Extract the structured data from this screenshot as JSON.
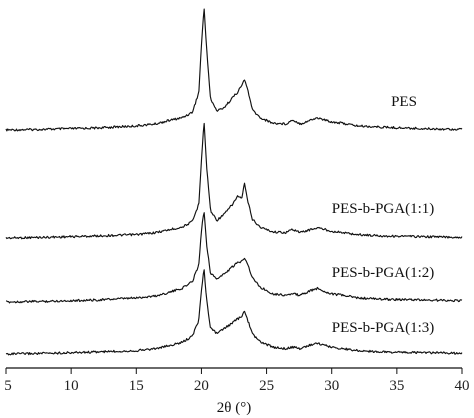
{
  "chart_data": {
    "type": "line",
    "xlabel": "2θ (°)",
    "ylabel": "",
    "xlim": [
      5,
      40
    ],
    "xticks": [
      5,
      10,
      15,
      20,
      25,
      30,
      35,
      40
    ],
    "yaxis_visible": false,
    "grid": false,
    "series": [
      {
        "name": "PES",
        "x": [
          5,
          8,
          12,
          15,
          16.5,
          17.5,
          18.5,
          19.3,
          19.8,
          20.0,
          20.2,
          20.4,
          20.7,
          21.2,
          21.8,
          22.4,
          22.8,
          23.1,
          23.3,
          23.55,
          23.9,
          24.5,
          25.5,
          26.5,
          27.0,
          27.6,
          28.3,
          28.9,
          29.4,
          30.0,
          30.8,
          32,
          34,
          37,
          40
        ],
        "y": [
          0,
          0.01,
          0.03,
          0.06,
          0.09,
          0.14,
          0.18,
          0.26,
          0.55,
          1.25,
          1.8,
          1.2,
          0.45,
          0.28,
          0.34,
          0.48,
          0.56,
          0.66,
          0.74,
          0.6,
          0.3,
          0.18,
          0.1,
          0.09,
          0.15,
          0.09,
          0.14,
          0.18,
          0.15,
          0.12,
          0.1,
          0.06,
          0.04,
          0.02,
          0.01
        ]
      },
      {
        "name": "PES-b-PGA(1:1)",
        "x": [
          5,
          8,
          12,
          15,
          16.5,
          17.5,
          18.5,
          19.3,
          19.8,
          20.0,
          20.2,
          20.4,
          20.7,
          21.2,
          21.8,
          22.4,
          22.8,
          23.1,
          23.3,
          23.55,
          23.9,
          24.5,
          25.5,
          26.5,
          27.0,
          27.6,
          28.3,
          28.9,
          29.4,
          30.0,
          30.8,
          32,
          34,
          37,
          40
        ],
        "y": [
          0,
          0.01,
          0.03,
          0.05,
          0.08,
          0.12,
          0.16,
          0.24,
          0.5,
          1.15,
          1.72,
          1.05,
          0.4,
          0.26,
          0.36,
          0.5,
          0.62,
          0.58,
          0.8,
          0.55,
          0.28,
          0.16,
          0.09,
          0.08,
          0.13,
          0.08,
          0.12,
          0.15,
          0.13,
          0.1,
          0.08,
          0.05,
          0.03,
          0.02,
          0.01
        ]
      },
      {
        "name": "PES-b-PGA(1:2)",
        "x": [
          5,
          8,
          12,
          15,
          16.5,
          17.5,
          18.5,
          19.3,
          19.8,
          20.0,
          20.2,
          20.4,
          20.7,
          21.2,
          21.8,
          22.4,
          22.8,
          23.1,
          23.3,
          23.55,
          23.9,
          24.5,
          25.5,
          26.5,
          27.0,
          27.6,
          28.3,
          28.9,
          29.4,
          30.0,
          30.8,
          32,
          34,
          37,
          40
        ],
        "y": [
          0,
          0.01,
          0.03,
          0.06,
          0.09,
          0.14,
          0.2,
          0.3,
          0.55,
          1.05,
          1.35,
          0.85,
          0.42,
          0.34,
          0.42,
          0.52,
          0.58,
          0.6,
          0.66,
          0.56,
          0.36,
          0.22,
          0.12,
          0.1,
          0.12,
          0.1,
          0.16,
          0.2,
          0.16,
          0.12,
          0.1,
          0.06,
          0.04,
          0.03,
          0.02
        ]
      },
      {
        "name": "PES-b-PGA(1:3)",
        "x": [
          5,
          8,
          12,
          15,
          16.5,
          17.5,
          18.5,
          19.3,
          19.8,
          20.0,
          20.2,
          20.4,
          20.7,
          21.2,
          21.8,
          22.4,
          22.8,
          23.1,
          23.3,
          23.55,
          23.9,
          24.5,
          25.5,
          26.5,
          27.0,
          27.6,
          28.3,
          28.9,
          29.4,
          30.0,
          30.8,
          32,
          34,
          37,
          40
        ],
        "y": [
          0,
          0.01,
          0.03,
          0.05,
          0.08,
          0.12,
          0.17,
          0.26,
          0.5,
          0.95,
          1.25,
          0.8,
          0.38,
          0.3,
          0.38,
          0.46,
          0.52,
          0.54,
          0.64,
          0.5,
          0.3,
          0.18,
          0.1,
          0.08,
          0.1,
          0.08,
          0.13,
          0.16,
          0.13,
          0.1,
          0.08,
          0.05,
          0.03,
          0.02,
          0.01
        ]
      }
    ]
  }
}
